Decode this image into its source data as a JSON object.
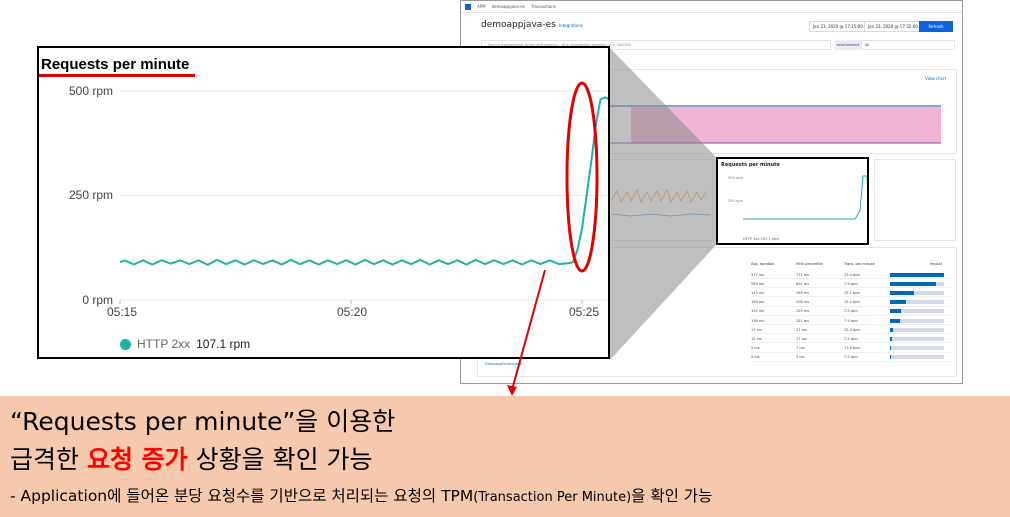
{
  "apm": {
    "breadcrumb": [
      "APM",
      "demoappjava-es",
      "Transactions"
    ],
    "service_title": "demoappjava-es",
    "integrations_label": "Integrations",
    "date_from": "Jan 23, 2020 @ 17:15:00.0",
    "date_to": "Jan 23, 2020 @ 17:32:00.0",
    "refresh_label": "Refresh",
    "search_placeholder": "Search transactions, errors and metrics... (E.g. transaction.duration.us > 300000)",
    "environment_label": "environment",
    "environment_value": "All",
    "view_chart_label": "View chart",
    "table_headers": [
      "Avg. duration",
      "95th percentile",
      "Trans. per minute",
      "Impact"
    ],
    "table_rows": [
      {
        "avg": "377 ms",
        "p95": "711 ms",
        "tpm": "13.4 tpm",
        "impact": 1.0
      },
      {
        "avg": "589 ms",
        "p95": "801 ms",
        "tpm": "7.5 tpm",
        "impact": 0.85
      },
      {
        "avg": "143 ms",
        "p95": "199 ms",
        "tpm": "15.1 tpm",
        "impact": 0.45
      },
      {
        "avg": "196 ms",
        "p95": "206 ms",
        "tpm": "15.2 tpm",
        "impact": 0.3
      },
      {
        "avg": "152 ms",
        "p95": "155 ms",
        "tpm": "7.5 tpm",
        "impact": 0.2
      },
      {
        "avg": "136 ms",
        "p95": "151 ms",
        "tpm": "7.5 tpm",
        "impact": 0.18
      },
      {
        "avg": "17 ms",
        "p95": "17 ms",
        "tpm": "15.4 tpm",
        "impact": 0.06
      },
      {
        "avg": "12 ms",
        "p95": "17 ms",
        "tpm": "7.5 tpm",
        "impact": 0.03
      },
      {
        "avg": "5 ms",
        "p95": "7 ms",
        "tpm": "13.5 tpm",
        "impact": 0.02
      },
      {
        "avg": "5 ms",
        "p95": "5 ms",
        "tpm": "7.5 tpm",
        "impact": 0.01
      }
    ],
    "app_link": "DemoappController#..."
  },
  "mini_chart": {
    "title": "Requests per minute",
    "y_ticks": [
      "500 rpm",
      "250 rpm"
    ],
    "legend": "HTTP 2xx  107.1 rpm"
  },
  "zoom_chart": {
    "title": "Requests per minute",
    "legend_name": "HTTP 2xx",
    "legend_value": "107.1 rpm",
    "series_color": "#20b3a3"
  },
  "chart_data": {
    "type": "line",
    "title": "Requests per minute",
    "ylim": [
      0,
      500
    ],
    "y_ticks": [
      "0 rpm",
      "250 rpm",
      "500 rpm"
    ],
    "x_ticks": [
      "05:15",
      "05:20",
      "05:25"
    ],
    "series": [
      {
        "name": "HTTP 2xx",
        "x_minutes": [
          0,
          0.1,
          0.3,
          0.5,
          0.7,
          0.9,
          1.1,
          1.3,
          1.5,
          1.7,
          1.9,
          2.1,
          2.3,
          2.5,
          2.7,
          2.9,
          3.1,
          3.3,
          3.5,
          3.7,
          3.9,
          4.1,
          4.3,
          4.5,
          4.7,
          4.9,
          5.1,
          5.3,
          5.5,
          5.7,
          5.9,
          6.1,
          6.3,
          6.5,
          6.7,
          6.9,
          7.1,
          7.3,
          7.5,
          7.7,
          7.9,
          8.1,
          8.3,
          8.5,
          8.7,
          8.9,
          9.1,
          9.3,
          9.5,
          9.7,
          9.8,
          9.9,
          10.0,
          10.1,
          10.2,
          10.3,
          10.4,
          10.5,
          10.6,
          10.7,
          10.8
        ],
        "values": [
          90,
          95,
          85,
          95,
          85,
          95,
          87,
          95,
          86,
          95,
          84,
          96,
          86,
          95,
          85,
          95,
          86,
          95,
          85,
          96,
          86,
          95,
          85,
          95,
          86,
          95,
          85,
          96,
          86,
          95,
          85,
          95,
          86,
          96,
          85,
          95,
          86,
          95,
          85,
          96,
          86,
          95,
          86,
          95,
          85,
          95,
          86,
          95,
          86,
          88,
          90,
          120,
          170,
          250,
          330,
          420,
          480,
          485,
          480,
          480,
          482
        ]
      }
    ]
  },
  "caption": {
    "line1": "“Requests per minute”을 이용한",
    "line2_pre": "급격한 ",
    "line2_highlight": "요청 증가",
    "line2_post": " 상황을 확인 가능",
    "line3_main": "- Application에 들어온 분당 요청수를 기반으로 처리되는 요청의 TPM",
    "line3_small": "(Transaction Per Minute)",
    "line3_end": "을 확인 가능"
  },
  "colors": {
    "accent_red": "#e00000",
    "teal": "#20b3a3",
    "caption_bg": "#f6c9ad",
    "pink_area": "#f2b4d2"
  }
}
